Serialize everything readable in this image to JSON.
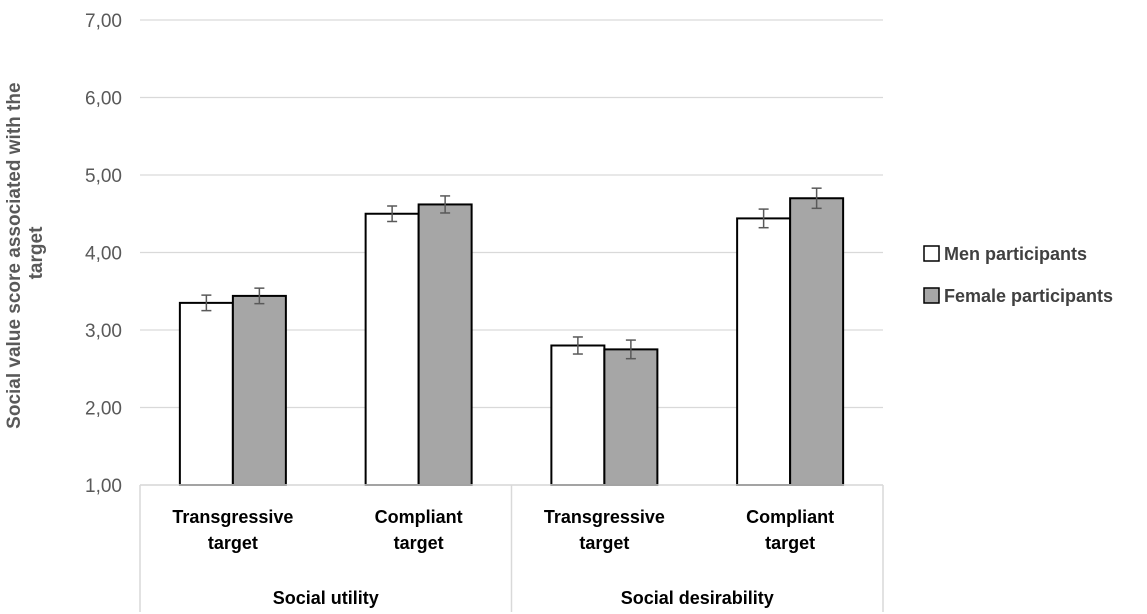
{
  "chart_data": {
    "type": "bar",
    "ylabel_lines": [
      "Social value score associated with the",
      "target"
    ],
    "ylim": [
      1,
      7
    ],
    "yticks": [
      "1,00",
      "2,00",
      "3,00",
      "4,00",
      "5,00",
      "6,00",
      "7,00"
    ],
    "ytick_values": [
      1,
      2,
      3,
      4,
      5,
      6,
      7
    ],
    "grid": true,
    "legend_position": "right",
    "categories": [
      [
        "Transgressive",
        "target"
      ],
      [
        "Compliant",
        "target"
      ],
      [
        "Transgressive",
        "target"
      ],
      [
        "Compliant",
        "target"
      ]
    ],
    "groups": [
      "Social utility",
      "Social desirability"
    ],
    "series": [
      {
        "name": "Men participants",
        "color": "#ffffff",
        "values": [
          3.35,
          4.5,
          2.8,
          4.44
        ],
        "errors": [
          0.1,
          0.1,
          0.11,
          0.12
        ]
      },
      {
        "name": "Female participants",
        "color": "#a6a6a6",
        "values": [
          3.44,
          4.62,
          2.75,
          4.7
        ],
        "errors": [
          0.1,
          0.11,
          0.12,
          0.13
        ]
      }
    ]
  }
}
